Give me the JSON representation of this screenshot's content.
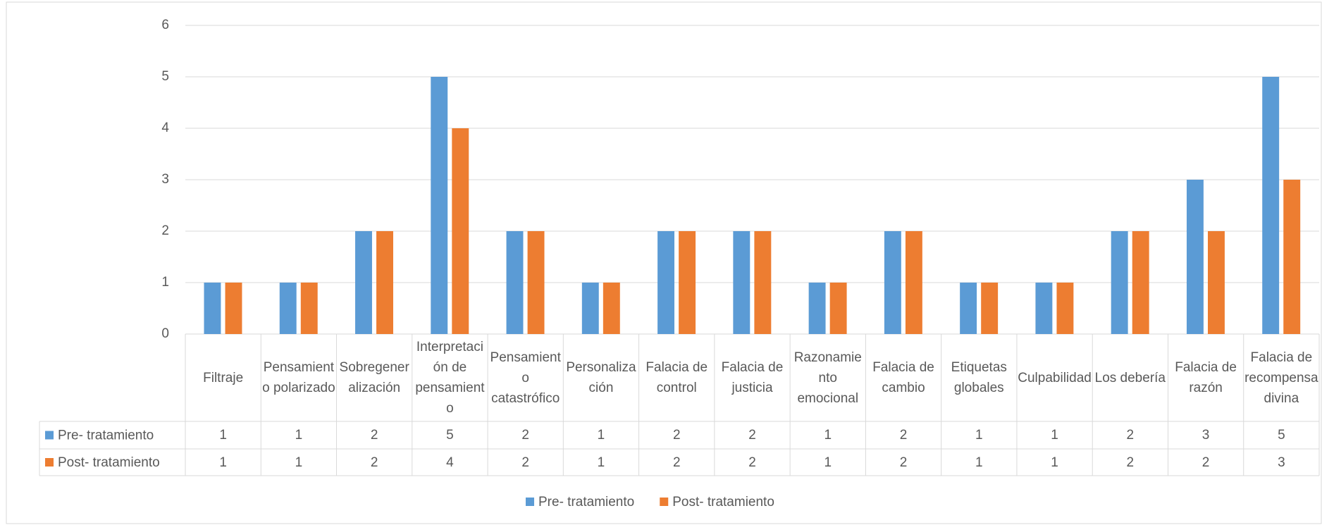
{
  "chart_data": {
    "type": "bar",
    "categories": [
      "Filtraje",
      "Pensamiento polarizado",
      "Sobregeneralización",
      "Interpretación de pensamiento",
      "Pensamiento catastrófico",
      "Personalización",
      "Falacia de control",
      "Falacia de justicia",
      "Razonamiento emocional",
      "Falacia de cambio",
      "Etiquetas globales",
      "Culpabilidad",
      "Los debería",
      "Falacia de razón",
      "Falacia de recompensa divina"
    ],
    "series": [
      {
        "name": "Pre- tratamiento",
        "color": "#5b9bd5",
        "values": [
          1,
          1,
          2,
          5,
          2,
          1,
          2,
          2,
          1,
          2,
          1,
          1,
          2,
          3,
          5
        ]
      },
      {
        "name": "Post- tratamiento",
        "color": "#ed7d31",
        "values": [
          1,
          1,
          2,
          4,
          2,
          1,
          2,
          2,
          1,
          2,
          1,
          1,
          2,
          2,
          3
        ]
      }
    ],
    "ylim": [
      0,
      6
    ],
    "yticks": [
      0,
      1,
      2,
      3,
      4,
      5,
      6
    ],
    "grid": true,
    "legend": "bottom",
    "data_table": true
  }
}
